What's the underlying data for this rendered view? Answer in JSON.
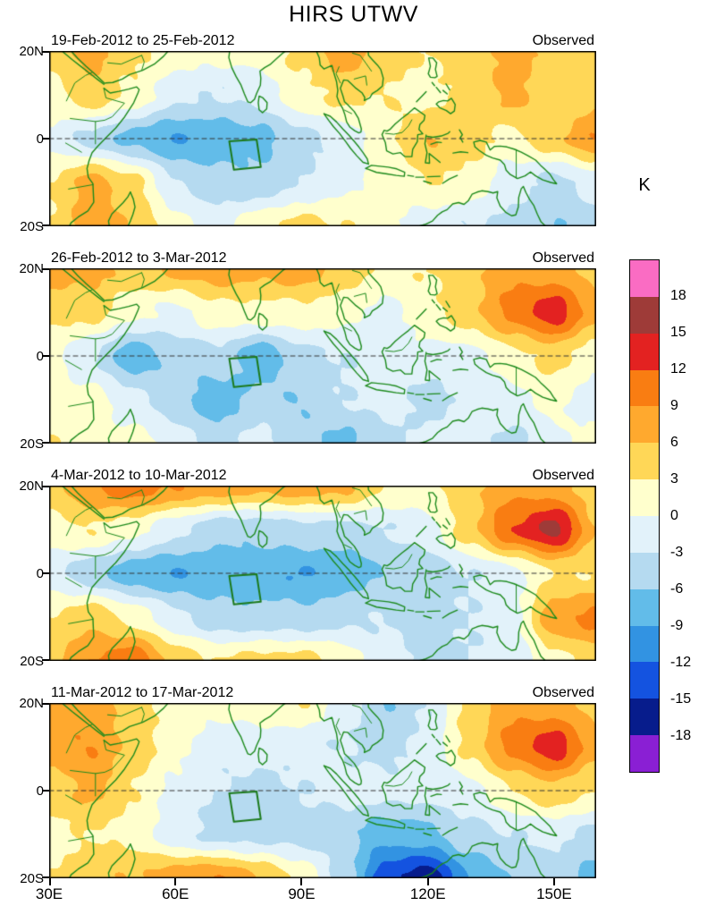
{
  "title": "HIRS UTWV",
  "axis": {
    "lat_ticks": [
      "20N",
      "0",
      "20S"
    ],
    "lon_ticks": [
      "30E",
      "60E",
      "90E",
      "120E",
      "150E"
    ],
    "lon_range": [
      30,
      160
    ],
    "lat_range": [
      -20,
      20
    ]
  },
  "colorbar": {
    "unit_label": "K",
    "tick_labels": [
      "18",
      "15",
      "12",
      "9",
      "6",
      "3",
      "0",
      "-3",
      "-6",
      "-9",
      "-12",
      "-15",
      "-18"
    ],
    "levels": [
      -18,
      -15,
      -12,
      -9,
      -6,
      -3,
      0,
      3,
      6,
      9,
      12,
      15,
      18
    ],
    "band_colors_top_to_bottom": [
      "#fa6cc3",
      "#9e3b38",
      "#e32221",
      "#f97d12",
      "#ffa92e",
      "#ffd757",
      "#ffffcd",
      "#e2f2fa",
      "#b5daf0",
      "#62bce9",
      "#3293e2",
      "#1453e0",
      "#071c8c",
      "#8a1fd4"
    ]
  },
  "map_colors": {
    "coastline": "#1c8a1c",
    "border_lines": "#1c8a1c",
    "equator_line": "#333333",
    "study_box": "#1c7a1c",
    "panel_frame": "#000000"
  },
  "annotations": {
    "study_box_lonlat": [
      [
        72.8,
        -0.6
      ],
      [
        79.3,
        -0.2
      ],
      [
        80.3,
        -6.5
      ],
      [
        73.9,
        -7.1
      ]
    ]
  },
  "chart_data": {
    "type": "heatmap",
    "unit": "K",
    "title": "HIRS UTWV",
    "grid_lons": [
      30,
      40,
      50,
      60,
      70,
      80,
      90,
      100,
      110,
      120,
      130,
      140,
      150,
      160
    ],
    "grid_lats": [
      20,
      10,
      0,
      -10,
      -20
    ],
    "panels": [
      {
        "date_range": "19-Feb-2012 to 25-Feb-2012",
        "source": "Observed",
        "values": [
          [
            4,
            7,
            4,
            2,
            1,
            1,
            4,
            8,
            4,
            3,
            5,
            7,
            5,
            4
          ],
          [
            2,
            5,
            2,
            -2,
            -3,
            -2,
            2,
            4,
            3,
            2,
            4,
            7,
            4,
            5
          ],
          [
            -1,
            -4,
            -7,
            -9,
            -8,
            -7,
            -4,
            -2,
            2,
            6,
            4,
            2,
            5,
            9
          ],
          [
            3,
            7,
            4,
            -3,
            -5,
            -5,
            -3,
            -1,
            1,
            3,
            2,
            -2,
            -4,
            -2
          ],
          [
            3,
            8,
            6,
            1,
            -1,
            2,
            4,
            3,
            1,
            -2,
            -3,
            -4,
            -6,
            -4
          ]
        ]
      },
      {
        "date_range": "26-Feb-2012 to 3-Mar-2012",
        "source": "Observed",
        "values": [
          [
            8,
            7,
            5,
            7,
            8,
            7,
            8,
            5,
            2,
            3,
            5,
            8,
            7,
            5
          ],
          [
            4,
            4,
            1,
            -1,
            2,
            2,
            2,
            1,
            -1,
            2,
            5,
            10,
            14,
            7
          ],
          [
            1,
            -3,
            -8,
            -5,
            -4,
            -8,
            -4,
            -3,
            -2,
            -1,
            -1,
            2,
            4,
            1
          ],
          [
            2,
            1,
            -2,
            -5,
            -8,
            -5,
            -6,
            -3,
            -2,
            -4,
            -2,
            -1,
            1,
            -2
          ],
          [
            3,
            2,
            1,
            -1,
            -4,
            -2,
            -5,
            -7,
            -4,
            -2,
            -2,
            -4,
            -1,
            2
          ]
        ]
      },
      {
        "date_range": "4-Mar-2012 to 10-Mar-2012",
        "source": "Observed",
        "values": [
          [
            5,
            9,
            11,
            9,
            8,
            7,
            8,
            7,
            3,
            2,
            5,
            8,
            7,
            4
          ],
          [
            2,
            3,
            1,
            -2,
            -5,
            -5,
            -4,
            -4,
            -3,
            -1,
            5,
            12,
            16,
            6
          ],
          [
            -2,
            -5,
            -8,
            -9,
            -8,
            -8,
            -9,
            -8,
            -6,
            -5,
            -3,
            -1,
            3,
            3
          ],
          [
            3,
            5,
            2,
            -2,
            -5,
            -5,
            -5,
            -4,
            -3,
            -4,
            -3,
            -1,
            8,
            10
          ],
          [
            5,
            9,
            11,
            5,
            3,
            4,
            4,
            2,
            -2,
            -4,
            -3,
            -2,
            2,
            4
          ]
        ]
      },
      {
        "date_range": "11-Mar-2012 to 17-Mar-2012",
        "source": "Observed",
        "values": [
          [
            7,
            8,
            4,
            2,
            1,
            2,
            3,
            -1,
            -6,
            -3,
            4,
            8,
            7,
            5
          ],
          [
            8,
            9,
            5,
            1,
            -2,
            -2,
            -2,
            -3,
            -4,
            -2,
            4,
            10,
            14,
            7
          ],
          [
            4,
            7,
            3,
            -1,
            -3,
            -4,
            -3,
            -2,
            -2,
            -2,
            -1,
            3,
            5,
            3
          ],
          [
            2,
            3,
            2,
            -2,
            -4,
            -4,
            -4,
            -5,
            -8,
            -7,
            -4,
            -3,
            -2,
            -4
          ],
          [
            3,
            5,
            6,
            8,
            9,
            6,
            2,
            -4,
            -14,
            -17,
            -9,
            -6,
            -5,
            -7
          ]
        ]
      }
    ]
  }
}
